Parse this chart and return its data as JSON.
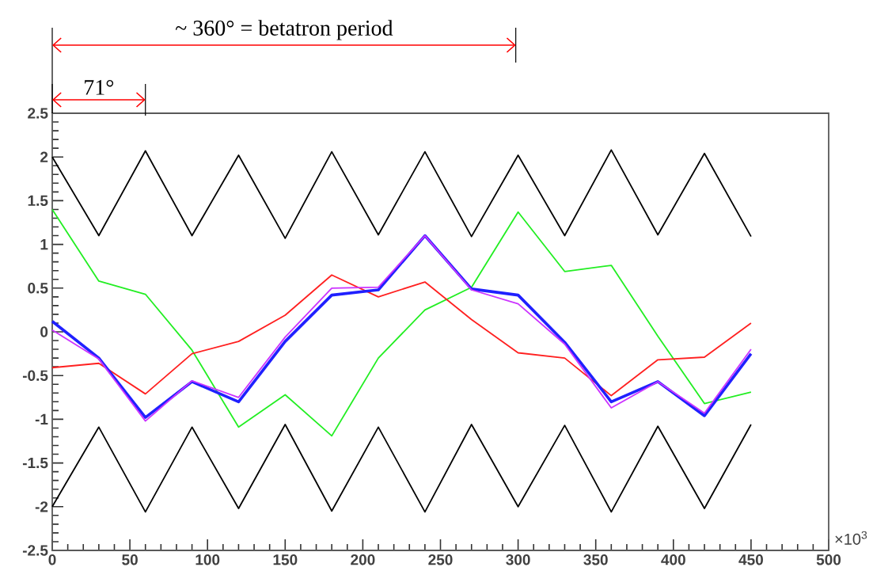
{
  "chart_data": {
    "type": "line",
    "xlabel": "×10$^{3}$",
    "annotations": [
      "~ 360° = betatron period",
      "71°"
    ],
    "x": [
      0,
      30,
      60,
      90,
      120,
      150,
      180,
      210,
      240,
      270,
      300,
      330,
      360,
      390,
      420,
      450
    ],
    "series": [
      {
        "color": "#000000",
        "values": [
          2.0,
          1.1,
          2.07,
          1.1,
          2.02,
          1.07,
          2.06,
          1.11,
          2.06,
          1.09,
          2.02,
          1.1,
          2.08,
          1.11,
          2.04,
          1.09
        ]
      },
      {
        "color": "#000000",
        "values": [
          -2.0,
          -1.09,
          -2.06,
          -1.09,
          -2.02,
          -1.06,
          -2.05,
          -1.09,
          -2.06,
          -1.06,
          -2.0,
          -1.07,
          -2.06,
          -1.08,
          -2.02,
          -1.06
        ]
      },
      {
        "color": "#22ee22",
        "values": [
          1.4,
          0.58,
          0.43,
          -0.21,
          -1.09,
          -0.72,
          -1.19,
          -0.3,
          0.25,
          0.51,
          1.37,
          0.69,
          0.76,
          -0.05,
          -0.82,
          -0.69
        ]
      },
      {
        "color": "#ff2020",
        "values": [
          -0.41,
          -0.36,
          -0.71,
          -0.25,
          -0.11,
          0.19,
          0.65,
          0.4,
          0.57,
          0.14,
          -0.24,
          -0.3,
          -0.73,
          -0.32,
          -0.29,
          0.1
        ]
      },
      {
        "color": "#2020ff",
        "values": [
          0.12,
          -0.3,
          -0.98,
          -0.57,
          -0.8,
          -0.11,
          0.42,
          0.48,
          1.1,
          0.49,
          0.42,
          -0.12,
          -0.8,
          -0.57,
          -0.96,
          -0.25
        ]
      },
      {
        "color": "#cc33ff",
        "values": [
          0.02,
          -0.31,
          -1.02,
          -0.56,
          -0.75,
          -0.06,
          0.5,
          0.51,
          1.1,
          0.48,
          0.32,
          -0.14,
          -0.87,
          -0.57,
          -0.93,
          -0.2
        ]
      }
    ],
    "xlim": [
      0,
      500
    ],
    "ylim": [
      -2.5,
      2.5
    ],
    "xticks": [
      0,
      50,
      100,
      150,
      200,
      250,
      300,
      350,
      400,
      450,
      500
    ],
    "yticks": [
      -2.5,
      -2,
      -1.5,
      -1,
      -0.5,
      0,
      0.5,
      1,
      1.5,
      2,
      2.5
    ],
    "grid": false,
    "marker": "none",
    "line_style": "solid"
  }
}
